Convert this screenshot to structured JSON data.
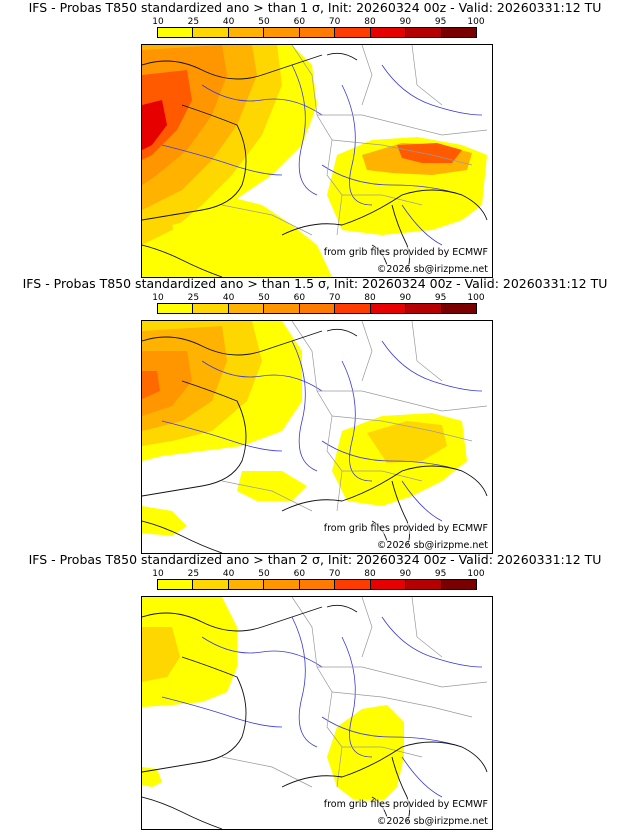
{
  "palette": [
    "#ffff00",
    "#ffd700",
    "#ffb300",
    "#ff9600",
    "#ff7a00",
    "#ff3c00",
    "#e60000",
    "#b40000",
    "#7a0000"
  ],
  "scale_ticks": [
    "10",
    "25",
    "40",
    "50",
    "60",
    "70",
    "80",
    "90",
    "95",
    "100"
  ],
  "panels": [
    {
      "title": "IFS - Probas T850  standardized ano > than 1 σ, Init: 20260324 00z - Valid: 20260331:12 TU",
      "source": "from grib files provided by ECMWF",
      "copyright": "©2026 sb@irizpme.net"
    },
    {
      "title": "IFS - Probas T850  standardized ano > than 1.5 σ, Init: 20260324 00z - Valid: 20260331:12 TU",
      "source": "from grib files provided by ECMWF",
      "copyright": "©2026 sb@irizpme.net"
    },
    {
      "title": "IFS - Probas T850  standardized ano > than 2 σ, Init: 20260324 00z - Valid: 20260331:12 TU",
      "source": "from grib files provided by ECMWF",
      "copyright": "©2026 sb@irizpme.net"
    }
  ]
}
